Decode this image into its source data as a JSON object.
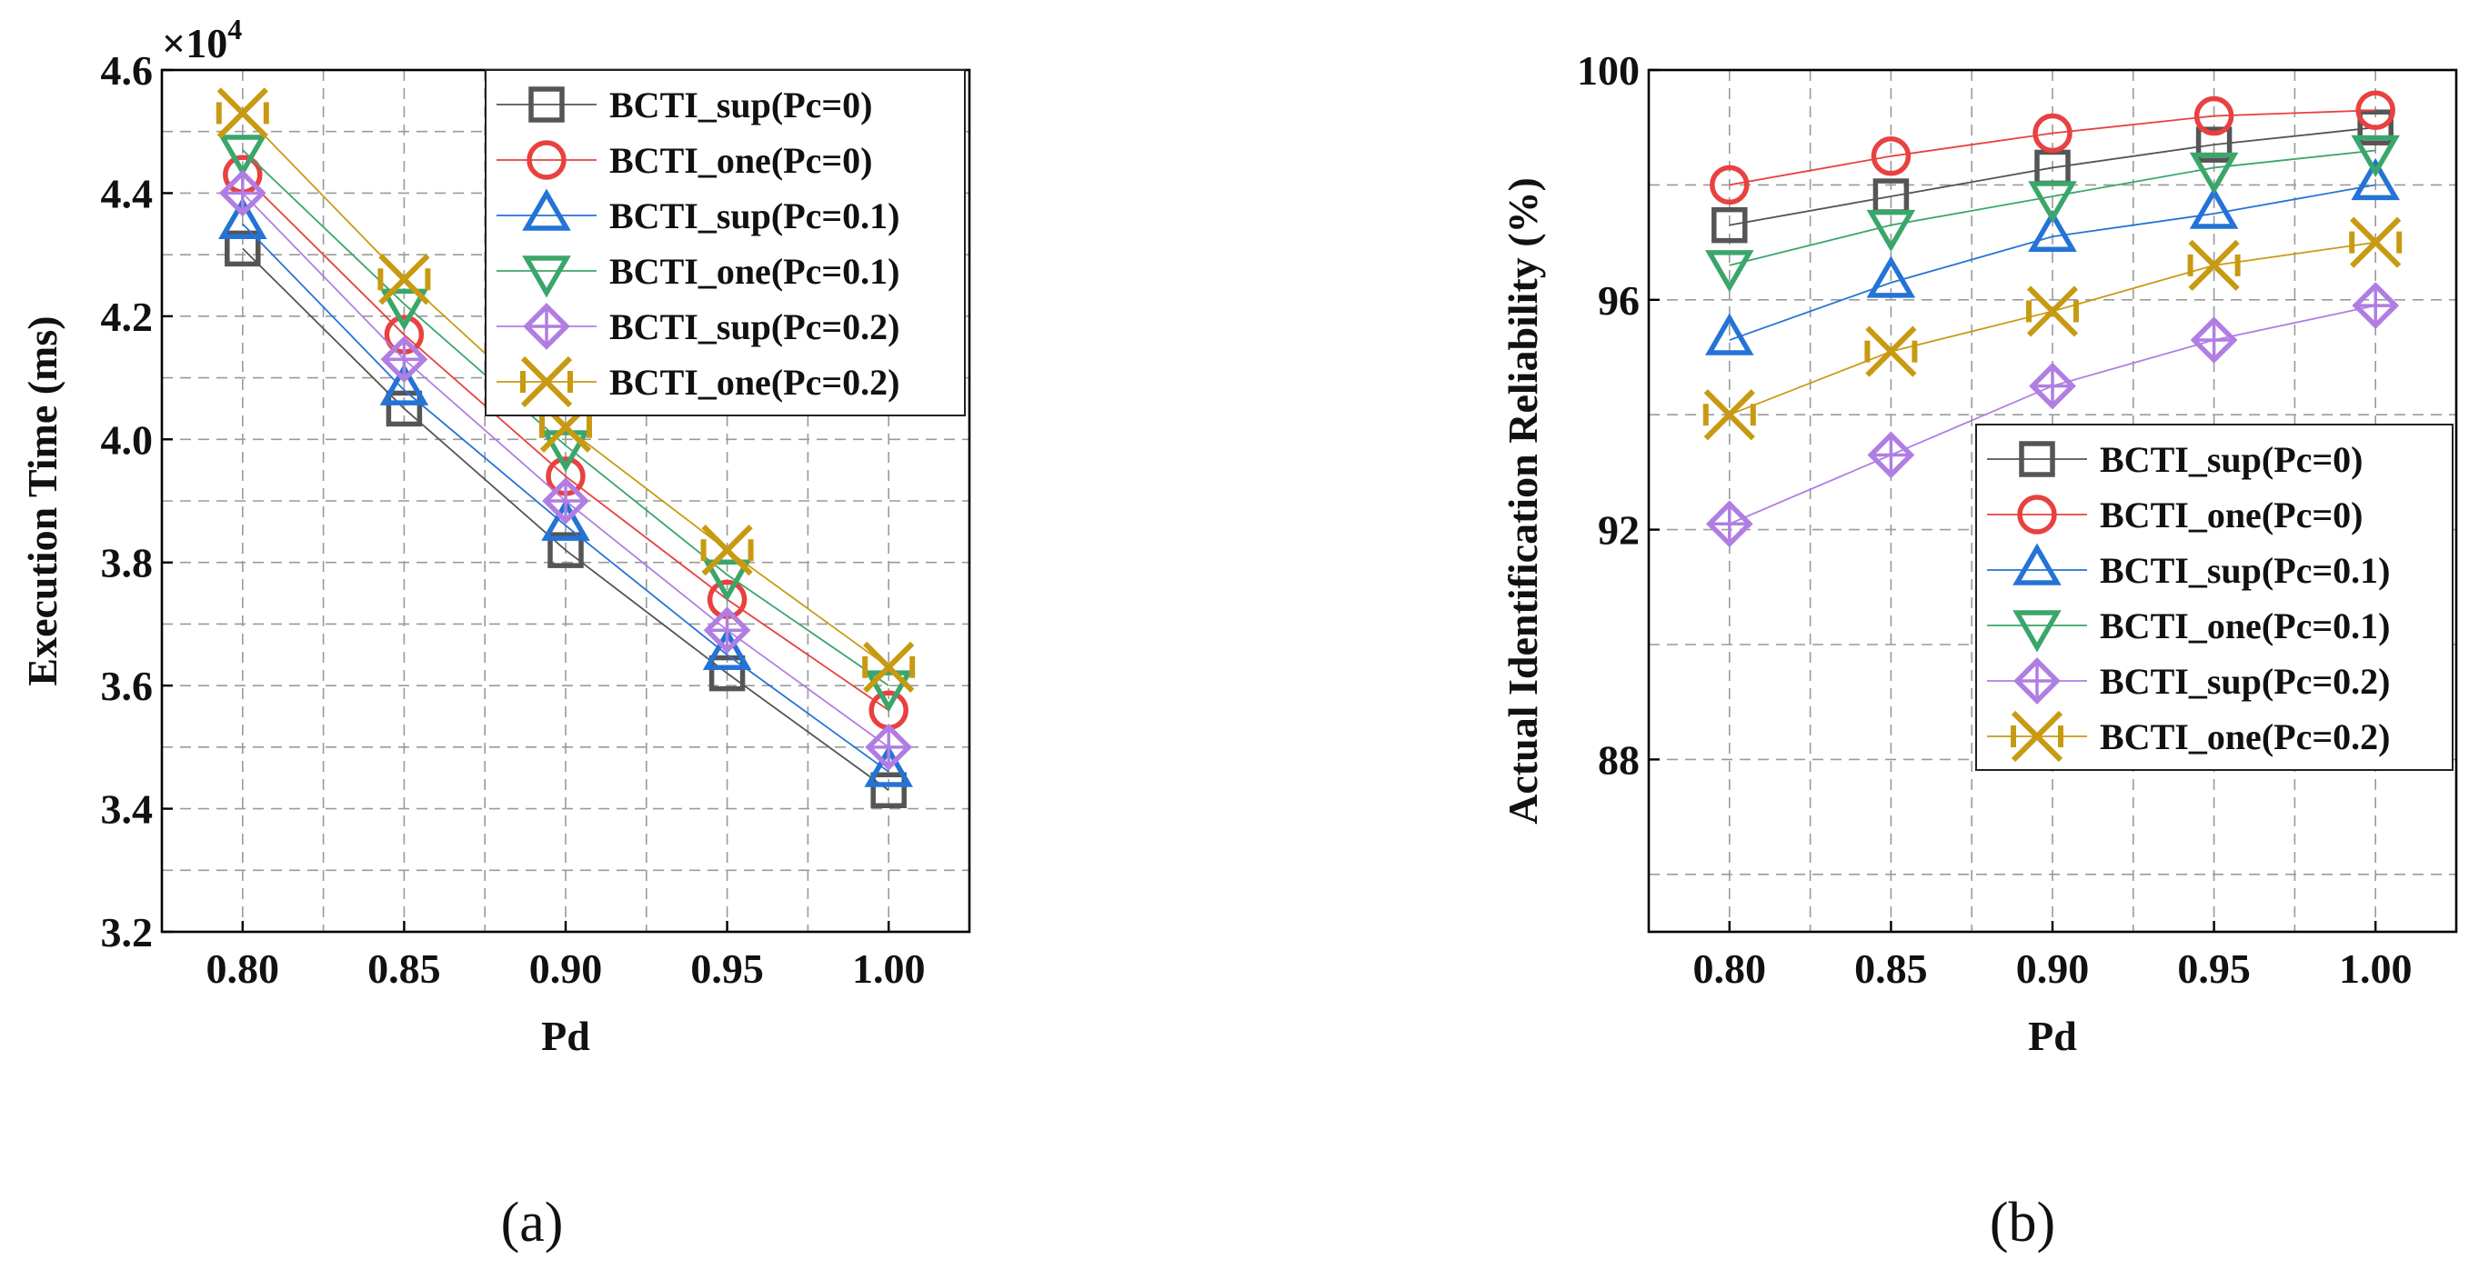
{
  "chart_data": [
    {
      "type": "line",
      "caption": "(a)",
      "xlabel": "Pd",
      "ylabel": "Execution Time (ms)",
      "y_multiplier": "×10",
      "y_multiplier_exp": "4",
      "x": [
        0.8,
        0.85,
        0.9,
        0.95,
        1.0
      ],
      "x_tick_labels": [
        "0.80",
        "0.85",
        "0.90",
        "0.95",
        "1.00"
      ],
      "xlim": [
        0.775,
        1.025
      ],
      "ylim": [
        3.2,
        4.6
      ],
      "y_ticks": [
        3.2,
        3.4,
        3.6,
        3.8,
        4.0,
        4.2,
        4.4,
        4.6
      ],
      "y_tick_labels": [
        "3.2",
        "3.4",
        "3.6",
        "3.8",
        "4.0",
        "4.2",
        "4.4",
        "4.6"
      ],
      "y_minor_grid": [
        3.3,
        3.5,
        3.7,
        3.9,
        4.1,
        4.3,
        4.5
      ],
      "grid": true,
      "legend_position": "top-right",
      "series": [
        {
          "name": "BCTI_sup(Pc=0)",
          "values": [
            4.31,
            4.05,
            3.82,
            3.62,
            3.43
          ]
        },
        {
          "name": "BCTI_one(Pc=0)",
          "values": [
            4.43,
            4.17,
            3.94,
            3.74,
            3.56
          ]
        },
        {
          "name": "BCTI_sup(Pc=0.1)",
          "values": [
            4.35,
            4.08,
            3.86,
            3.65,
            3.46
          ]
        },
        {
          "name": "BCTI_one(Pc=0.1)",
          "values": [
            4.47,
            4.22,
            3.99,
            3.78,
            3.6
          ]
        },
        {
          "name": "BCTI_sup(Pc=0.2)",
          "values": [
            4.4,
            4.13,
            3.9,
            3.69,
            3.5
          ]
        },
        {
          "name": "BCTI_one(Pc=0.2)",
          "values": [
            4.53,
            4.26,
            4.02,
            3.82,
            3.63
          ]
        }
      ]
    },
    {
      "type": "line",
      "caption": "(b)",
      "xlabel": "Pd",
      "ylabel": "Actual Identification Reliability (%)",
      "x": [
        0.8,
        0.85,
        0.9,
        0.95,
        1.0
      ],
      "x_tick_labels": [
        "0.80",
        "0.85",
        "0.90",
        "0.95",
        "1.00"
      ],
      "xlim": [
        0.775,
        1.025
      ],
      "ylim": [
        85,
        100
      ],
      "y_ticks": [
        88,
        92,
        96,
        100
      ],
      "y_tick_labels": [
        "88",
        "92",
        "96",
        "100"
      ],
      "y_minor_grid": [
        86,
        90,
        94,
        98
      ],
      "grid": true,
      "legend_position": "bottom-right",
      "series": [
        {
          "name": "BCTI_sup(Pc=0)",
          "values": [
            97.3,
            97.8,
            98.3,
            98.7,
            99.0
          ]
        },
        {
          "name": "BCTI_one(Pc=0)",
          "values": [
            98.0,
            98.5,
            98.9,
            99.2,
            99.3
          ]
        },
        {
          "name": "BCTI_sup(Pc=0.1)",
          "values": [
            95.3,
            96.3,
            97.1,
            97.5,
            98.0
          ]
        },
        {
          "name": "BCTI_one(Pc=0.1)",
          "values": [
            96.6,
            97.3,
            97.8,
            98.3,
            98.6
          ]
        },
        {
          "name": "BCTI_sup(Pc=0.2)",
          "values": [
            92.1,
            93.3,
            94.5,
            95.3,
            95.9
          ]
        },
        {
          "name": "BCTI_one(Pc=0.2)",
          "values": [
            94.0,
            95.1,
            95.8,
            96.6,
            97.0
          ]
        }
      ]
    }
  ],
  "styles": {
    "series_colors": [
      "#555555",
      "#e8413f",
      "#2473d6",
      "#3aa66a",
      "#b07ee3",
      "#c89a12"
    ],
    "series_markers": [
      "square",
      "circle",
      "triangle-up",
      "triangle-down",
      "diamond-plus",
      "bowtie-x"
    ]
  }
}
